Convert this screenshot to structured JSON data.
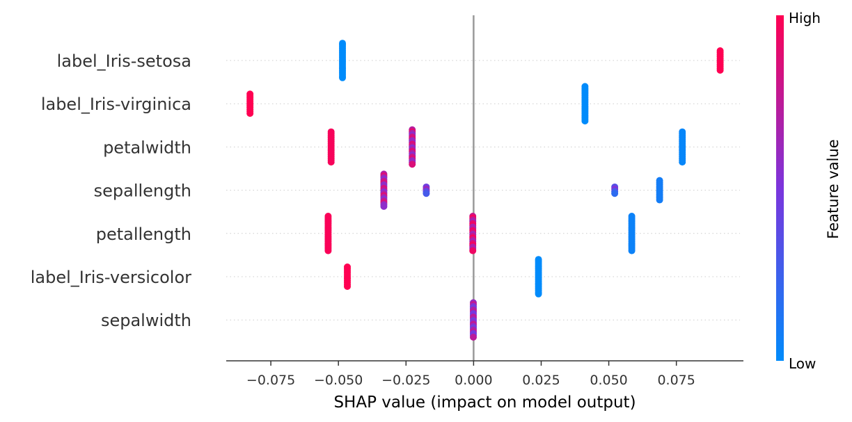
{
  "chart_data": {
    "type": "scatter",
    "subtype": "shap-beeswarm",
    "xlabel": "SHAP value (impact on model output)",
    "xlim": [
      -0.0915,
      0.0998
    ],
    "x_ticks": [
      -0.075,
      -0.05,
      -0.025,
      0.0,
      0.025,
      0.05,
      0.075
    ],
    "x_tick_labels": [
      "−0.075",
      "−0.050",
      "−0.025",
      "0.000",
      "0.025",
      "0.050",
      "0.075"
    ],
    "features": [
      "label_Iris-setosa",
      "label_Iris-virginica",
      "petalwidth",
      "sepallength",
      "petallength",
      "label_Iris-versicolor",
      "sepalwidth"
    ],
    "series": [
      {
        "feature": "label_Iris-setosa",
        "points": [
          {
            "x": -0.0485,
            "value": 0.0,
            "spread": 0.8
          },
          {
            "x": 0.0912,
            "value": 1.0,
            "spread": 0.45
          }
        ]
      },
      {
        "feature": "label_Iris-virginica",
        "points": [
          {
            "x": -0.0827,
            "value": 1.0,
            "spread": 0.45
          },
          {
            "x": 0.0412,
            "value": 0.0,
            "spread": 0.8
          }
        ]
      },
      {
        "feature": "petalwidth",
        "points": [
          {
            "x": -0.0527,
            "value": 0.97,
            "spread": 0.7
          },
          {
            "x": -0.0227,
            "value": 0.72,
            "spread": 0.8
          },
          {
            "x": 0.0772,
            "value": 0.03,
            "spread": 0.7
          }
        ]
      },
      {
        "feature": "sepallength",
        "points": [
          {
            "x": -0.0332,
            "value": 0.7,
            "spread": 0.75
          },
          {
            "x": -0.0175,
            "value": 0.45,
            "spread": 0.15
          },
          {
            "x": 0.0522,
            "value": 0.35,
            "spread": 0.15
          },
          {
            "x": 0.0688,
            "value": 0.08,
            "spread": 0.45
          }
        ]
      },
      {
        "feature": "petallength",
        "points": [
          {
            "x": -0.0538,
            "value": 0.98,
            "spread": 0.8
          },
          {
            "x": -0.0003,
            "value": 0.8,
            "spread": 0.8
          },
          {
            "x": 0.0585,
            "value": 0.05,
            "spread": 0.8
          }
        ]
      },
      {
        "feature": "label_Iris-versicolor",
        "points": [
          {
            "x": -0.0467,
            "value": 1.0,
            "spread": 0.45
          },
          {
            "x": 0.024,
            "value": 0.0,
            "spread": 0.8
          }
        ]
      },
      {
        "feature": "sepalwidth",
        "points": [
          {
            "x": -0.0001,
            "value": 0.6,
            "spread": 0.8
          }
        ]
      }
    ],
    "colorbar": {
      "label": "Feature value",
      "high_label": "High",
      "low_label": "Low",
      "low_color": "#008bfb",
      "mid_color": "#7b35dd",
      "high_color": "#ff0052"
    },
    "zero_line": true,
    "row_gridlines": "dotted",
    "legend": "colorbar-right"
  }
}
